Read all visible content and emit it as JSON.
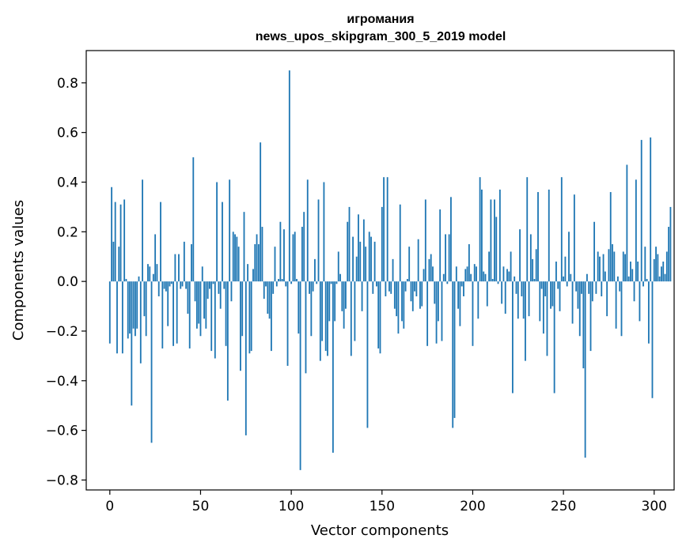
{
  "chart_data": {
    "type": "bar",
    "title": "игромания",
    "subtitle": "news_upos_skipgram_300_5_2019 model",
    "xlabel": "Vector components",
    "ylabel": "Components values",
    "xlim": [
      -13,
      311
    ],
    "ylim": [
      -0.84,
      0.93
    ],
    "xticks": [
      0,
      50,
      100,
      150,
      200,
      250,
      300
    ],
    "xtick_labels": [
      "0",
      "50",
      "100",
      "150",
      "200",
      "250",
      "300"
    ],
    "yticks": [
      -0.8,
      -0.6,
      -0.4,
      -0.2,
      0.0,
      0.2,
      0.4,
      0.6,
      0.8
    ],
    "ytick_labels": [
      "−0.8",
      "−0.6",
      "−0.4",
      "−0.2",
      "0.0",
      "0.2",
      "0.4",
      "0.6",
      "0.8"
    ],
    "bar_color": "#1f77b4",
    "grid": false,
    "series": [
      {
        "name": "игромания",
        "values": [
          -0.25,
          0.38,
          0.16,
          0.32,
          -0.29,
          0.14,
          0.31,
          -0.29,
          0.33,
          0.01,
          -0.23,
          -0.21,
          -0.5,
          -0.19,
          -0.22,
          -0.19,
          0.02,
          -0.33,
          0.41,
          -0.14,
          -0.22,
          0.07,
          0.06,
          -0.65,
          0.03,
          0.19,
          0.07,
          -0.06,
          0.32,
          -0.27,
          -0.03,
          -0.04,
          -0.18,
          -0.02,
          -0.01,
          -0.26,
          0.11,
          -0.25,
          0.11,
          -0.03,
          -0.02,
          0.16,
          -0.03,
          -0.13,
          -0.27,
          0.15,
          0.5,
          -0.08,
          -0.19,
          -0.17,
          -0.22,
          0.06,
          -0.15,
          -0.19,
          -0.07,
          -0.03,
          -0.28,
          -0.01,
          -0.31,
          0.4,
          -0.05,
          -0.11,
          0.32,
          -0.03,
          -0.26,
          -0.48,
          0.41,
          -0.08,
          0.2,
          0.19,
          0.18,
          0.14,
          -0.36,
          -0.22,
          0.28,
          -0.62,
          0.07,
          -0.29,
          -0.28,
          0.05,
          0.15,
          0.19,
          0.15,
          0.56,
          0.22,
          -0.07,
          -0.02,
          -0.13,
          -0.15,
          -0.28,
          -0.05,
          0.14,
          -0.02,
          0.01,
          0.24,
          0.01,
          0.21,
          -0.02,
          -0.34,
          0.85,
          -0.01,
          0.19,
          0.2,
          0.01,
          -0.21,
          -0.76,
          0.22,
          0.28,
          -0.37,
          0.41,
          -0.05,
          -0.22,
          -0.04,
          0.09,
          -0.01,
          0.33,
          -0.32,
          -0.24,
          0.4,
          -0.28,
          -0.3,
          -0.16,
          -0.01,
          -0.69,
          -0.16,
          -0.01,
          0.12,
          0.03,
          -0.12,
          -0.19,
          -0.11,
          0.24,
          0.3,
          -0.3,
          0.18,
          -0.24,
          0.1,
          0.27,
          0.16,
          -0.12,
          0.25,
          0.14,
          -0.59,
          0.2,
          0.18,
          -0.05,
          0.16,
          -0.02,
          -0.27,
          -0.29,
          0.3,
          0.42,
          -0.06,
          0.42,
          -0.04,
          -0.05,
          0.09,
          -0.11,
          -0.14,
          -0.21,
          0.31,
          -0.16,
          -0.19,
          -0.04,
          0.01,
          0.14,
          -0.08,
          -0.12,
          -0.04,
          -0.06,
          0.17,
          -0.11,
          -0.1,
          0.05,
          0.33,
          -0.26,
          0.09,
          0.11,
          0.06,
          -0.09,
          -0.25,
          -0.16,
          0.29,
          -0.24,
          0.03,
          0.19,
          -0.01,
          0.19,
          0.34,
          -0.59,
          -0.55,
          0.06,
          -0.11,
          -0.18,
          -0.02,
          -0.06,
          0.05,
          0.06,
          0.15,
          0.03,
          -0.26,
          0.07,
          0.06,
          -0.15,
          0.42,
          0.37,
          0.04,
          0.03,
          -0.1,
          0.12,
          0.33,
          0.01,
          0.33,
          0.26,
          -0.01,
          0.37,
          -0.09,
          0.06,
          -0.13,
          0.05,
          0.04,
          0.12,
          -0.45,
          0.02,
          -0.05,
          -0.15,
          0.21,
          -0.06,
          -0.15,
          -0.32,
          0.42,
          -0.14,
          0.19,
          0.09,
          0.01,
          0.13,
          0.36,
          -0.16,
          -0.03,
          -0.21,
          -0.06,
          -0.3,
          0.37,
          -0.11,
          -0.1,
          -0.45,
          0.08,
          -0.03,
          -0.12,
          0.42,
          0.02,
          0.1,
          -0.02,
          0.2,
          0.03,
          -0.17,
          0.35,
          -0.04,
          -0.11,
          -0.22,
          -0.05,
          -0.35,
          -0.71,
          0.03,
          -0.05,
          -0.28,
          -0.08,
          0.24,
          -0.05,
          0.12,
          0.1,
          -0.06,
          0.11,
          0.04,
          -0.14,
          0.13,
          0.36,
          0.15,
          0.12,
          -0.19,
          0.02,
          -0.04,
          -0.22,
          0.12,
          0.11,
          0.47,
          0.02,
          0.08,
          0.05,
          -0.08,
          0.41,
          0.08,
          -0.16,
          0.57,
          -0.02,
          0.14,
          0.01,
          -0.25,
          0.58,
          -0.47,
          0.09,
          0.14,
          0.11,
          0.02,
          0.06,
          0.08,
          0.03,
          0.12,
          0.22,
          0.3
        ]
      }
    ]
  }
}
